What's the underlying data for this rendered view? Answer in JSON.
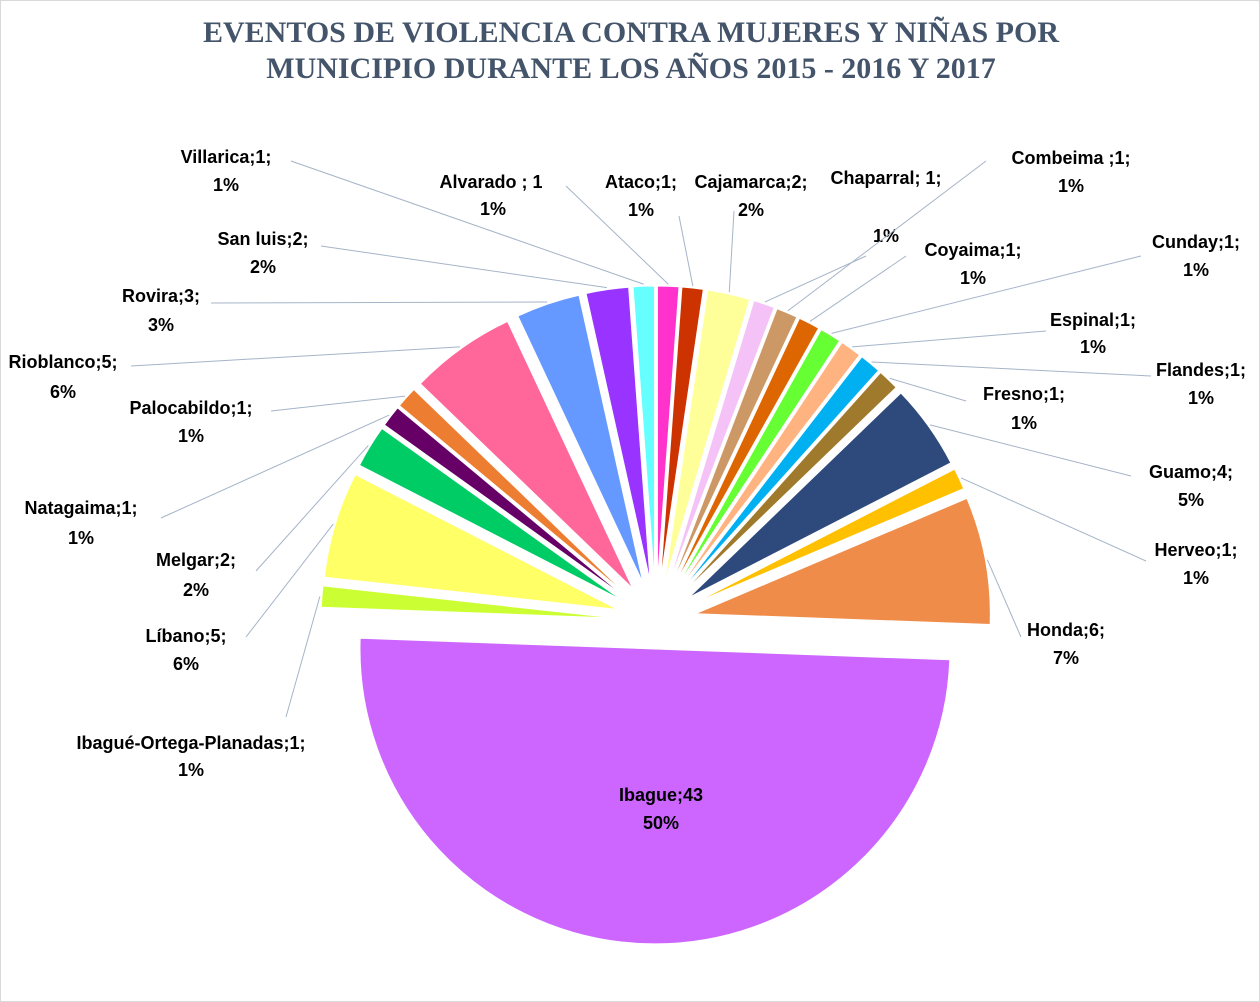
{
  "chart_data": {
    "type": "pie",
    "title": "EVENTOS DE VIOLENCIA CONTRA MUJERES Y NIÑAS POR MUNICIPIO DURANTE LOS AÑOS 2015 - 2016 Y 2017",
    "categories": [
      "Alvarado ; 1",
      "Ataco;1;",
      "Cajamarca;2;",
      "Chaparral; 1;",
      "Combeima ;1;",
      "Coyaima;1;",
      "Cunday;1;",
      "Espinal;1;",
      "Flandes;1;",
      "Fresno;1;",
      "Guamo;4;",
      "Herveo;1;",
      "Honda;6;",
      "Ibague;43",
      "Ibagué-Ortega-Planadas;1;",
      "Líbano;5;",
      "Melgar;2;",
      "Natagaima;1;",
      "Palocabildo;1;",
      "Rioblanco;5;",
      "Rovira;3;",
      "San luis;2;",
      "Villarica;1;"
    ],
    "values": [
      1,
      1,
      2,
      1,
      1,
      1,
      1,
      1,
      1,
      1,
      4,
      1,
      6,
      43,
      1,
      5,
      2,
      1,
      1,
      5,
      3,
      2,
      1
    ],
    "value_labels": [
      "1%",
      "1%",
      "2%",
      "1%",
      "1%",
      "1%",
      "1%",
      "1%",
      "1%",
      "1%",
      "5%",
      "1%",
      "7%",
      "50%",
      "1%",
      "6%",
      "2%",
      "1%",
      "1%",
      "6%",
      "3%",
      "2%",
      "1%"
    ],
    "colors": [
      "#ff33cc",
      "#cc3300",
      "#ffff99",
      "#f4c2f7",
      "#cc9966",
      "#dd6600",
      "#66ff33",
      "#ffb380",
      "#00b0f0",
      "#a07a2c",
      "#2e4a7d",
      "#ffc000",
      "#f08c4a",
      "#cc66ff",
      "#ccff33",
      "#ffff66",
      "#00cc66",
      "#660066",
      "#ed7d31",
      "#ff6699",
      "#6699ff",
      "#9933ff",
      "#66ffff"
    ]
  }
}
